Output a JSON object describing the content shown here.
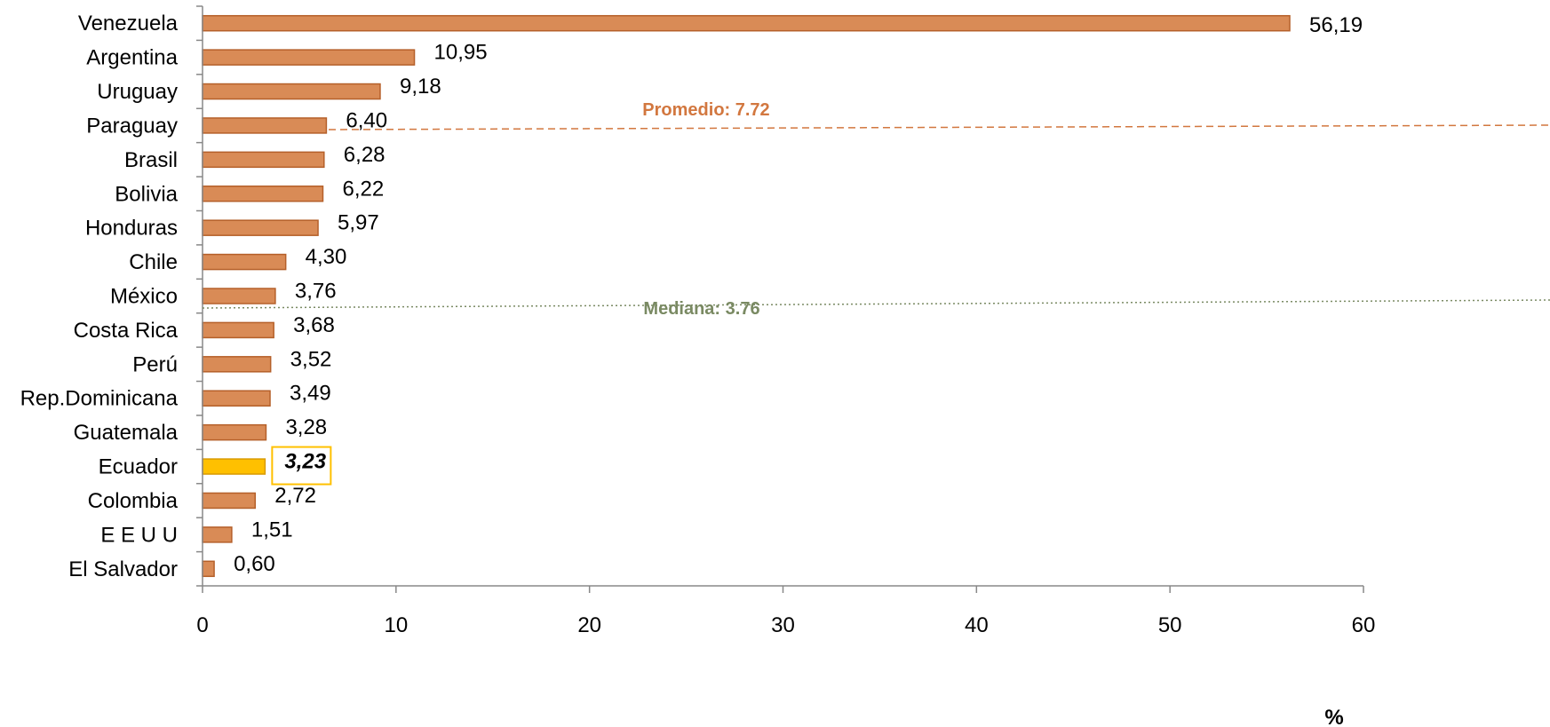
{
  "chart_data": {
    "type": "bar",
    "orientation": "horizontal",
    "categories": [
      "Venezuela",
      "Argentina",
      "Uruguay",
      "Paraguay",
      "Brasil",
      "Bolivia",
      "Honduras",
      "Chile",
      "México",
      "Costa Rica",
      "Perú",
      "Rep.Dominicana",
      "Guatemala",
      "Ecuador",
      "Colombia",
      "E E U U",
      "El Salvador"
    ],
    "values": [
      56.19,
      10.95,
      9.18,
      6.4,
      6.28,
      6.22,
      5.97,
      4.3,
      3.76,
      3.68,
      3.52,
      3.49,
      3.28,
      3.23,
      2.72,
      1.51,
      0.6
    ],
    "value_labels": [
      "56,19",
      "10,95",
      "9,18",
      "6,40",
      "6,28",
      "6,22",
      "5,97",
      "4,30",
      "3,76",
      "3,68",
      "3,52",
      "3,49",
      "3,28",
      "3,23",
      "2,72",
      "1,51",
      "0,60"
    ],
    "highlight_category": "Ecuador",
    "xlim": [
      0,
      60
    ],
    "x_ticks": [
      0,
      10,
      20,
      30,
      40,
      50,
      60
    ],
    "x_unit": "%",
    "reference_lines": [
      {
        "label": "Promedio: 7.72",
        "value": 7.72,
        "style": "dashed",
        "color": "#d2773f"
      },
      {
        "label": "Mediana: 3.76",
        "value": 3.76,
        "style": "dotted",
        "color": "#7a8a63"
      }
    ],
    "colors": {
      "bar": "#d98b56",
      "bar_border": "#b5602a",
      "highlight": "#ffc000",
      "highlight_border": "#d99a00",
      "highlight_box": "#ffc000",
      "axis": "#888888"
    },
    "grid": false,
    "legend": "none"
  }
}
